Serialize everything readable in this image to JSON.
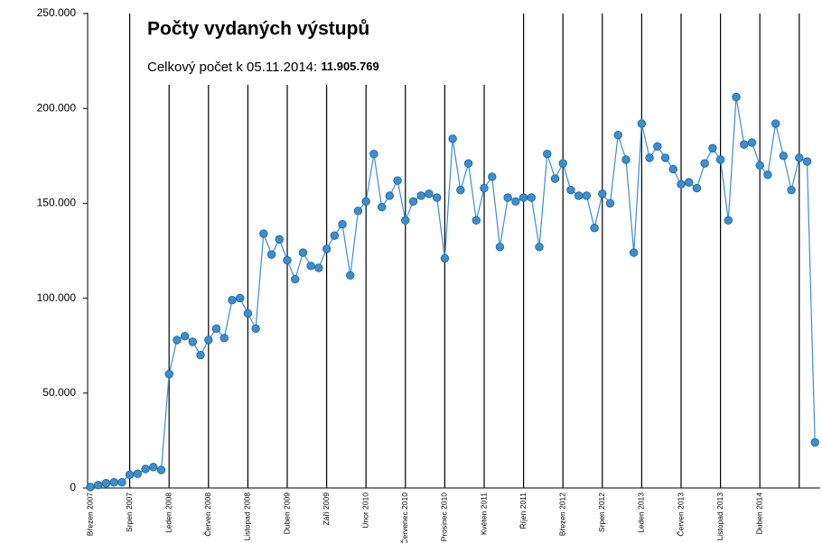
{
  "chart_data": {
    "type": "line",
    "title": "Počty vydaných výstupů",
    "subtitle": "Celkový počet k 05.11.2014:",
    "total": "11.905.769",
    "categories": [
      "Březen 2007",
      null,
      null,
      null,
      null,
      "Srpen 2007",
      null,
      null,
      null,
      null,
      "Leden 2008",
      null,
      null,
      null,
      null,
      "Červen 2008",
      null,
      null,
      null,
      null,
      "Listopad 2008",
      null,
      null,
      null,
      null,
      "Duben 2009",
      null,
      null,
      null,
      null,
      "Září 2009",
      null,
      null,
      null,
      null,
      "Únor 2010",
      null,
      null,
      null,
      null,
      "Červenec 2010",
      null,
      null,
      null,
      null,
      "Prosinec 2010",
      null,
      null,
      null,
      null,
      "Květen 2011",
      null,
      null,
      null,
      null,
      "Říjen 2011",
      null,
      null,
      null,
      null,
      "Březen 2012",
      null,
      null,
      null,
      null,
      "Srpen 2012",
      null,
      null,
      null,
      null,
      "Leden 2013",
      null,
      null,
      null,
      null,
      "Červen 2013",
      null,
      null,
      null,
      null,
      "Listopad 2013",
      null,
      null,
      null,
      null,
      "Duben 2014",
      null,
      null,
      null,
      null,
      null,
      null,
      null
    ],
    "series": [
      {
        "name": null,
        "color": "#3a8fd0",
        "values": [
          500,
          1500,
          2500,
          3000,
          3000,
          7000,
          7500,
          10000,
          11000,
          9500,
          60000,
          78000,
          80000,
          77000,
          70000,
          78000,
          84000,
          79000,
          99000,
          100000,
          92000,
          84000,
          134000,
          123000,
          131000,
          120000,
          110000,
          124000,
          117000,
          116000,
          126000,
          133000,
          139000,
          112000,
          146000,
          151000,
          176000,
          148000,
          154000,
          162000,
          141000,
          151000,
          154000,
          155000,
          153000,
          121000,
          184000,
          157000,
          171000,
          141000,
          158000,
          164000,
          127000,
          153000,
          151000,
          153000,
          153000,
          127000,
          176000,
          163000,
          171000,
          157000,
          154000,
          154000,
          137000,
          155000,
          150000,
          186000,
          173000,
          124000,
          192000,
          174000,
          180000,
          174000,
          168000,
          160000,
          161000,
          158000,
          171000,
          179000,
          173000,
          141000,
          206000,
          181000,
          182000,
          170000,
          165000,
          192000,
          175000,
          157000,
          174000,
          172000,
          24000
        ]
      }
    ],
    "ylim": [
      0,
      250000
    ],
    "yticks": [
      0,
      {
        "value": 50000,
        "label": "50.000"
      },
      {
        "value": 100000,
        "label": "100.000"
      },
      {
        "value": 150000,
        "label": "150.000"
      },
      {
        "value": 200000,
        "label": "200.000"
      },
      {
        "value": 250000,
        "label": "250.000"
      }
    ],
    "grid": false
  }
}
